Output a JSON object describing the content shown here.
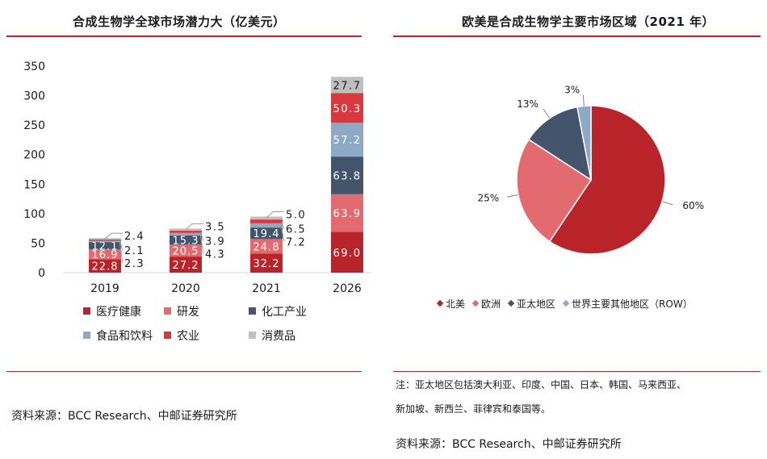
{
  "left": {
    "title": "合成生物学全球市场潜力大（亿美元）",
    "source": "资料来源：BCC Research、中邮证券研究所"
  },
  "right": {
    "title": "欧美是合成生物学主要市场区域（2021 年）",
    "note_line1": "注：亚太地区包括澳大利亚、印度、中国、日本、韩国、马来西亚、",
    "note_line2": "新加坡、新西兰、菲律宾和泰国等。",
    "source": "资料来源：BCC Research、中邮证券研究所"
  },
  "colors": {
    "medical": "#b82429",
    "rnd": "#e36b6f",
    "chemical": "#44546a",
    "food": "#8ea9c4",
    "agri": "#d9393e",
    "consumer": "#bfbfbf",
    "rule": "#b4262b"
  },
  "chart_data": [
    {
      "type": "bar",
      "stacked": true,
      "title": "合成生物学全球市场潜力大（亿美元）",
      "categories": [
        "2019",
        "2020",
        "2021",
        "2026"
      ],
      "ylim": [
        0,
        350
      ],
      "yticks": [
        "0",
        "50",
        "100",
        "150",
        "200",
        "250",
        "300",
        "350"
      ],
      "series": [
        {
          "name": "医疗健康",
          "values": [
            22.8,
            27.2,
            32.2,
            69.0
          ],
          "labels": [
            "22.8",
            "27.2",
            "32.2",
            "69.0"
          ]
        },
        {
          "name": "研发",
          "values": [
            16.9,
            20.5,
            24.8,
            63.9
          ],
          "labels": [
            "16.9",
            "20.5",
            "24.8",
            "63.9"
          ]
        },
        {
          "name": "化工产业",
          "values": [
            12.1,
            15.3,
            19.4,
            63.8
          ],
          "labels": [
            "12.1",
            "15.3",
            "19.4",
            "63.8"
          ]
        },
        {
          "name": "食品和饮料",
          "values": [
            2.3,
            4.3,
            7.2,
            57.2
          ],
          "labels": [
            "2.3",
            "4.3",
            "7.2",
            "57.2"
          ]
        },
        {
          "name": "农业",
          "values": [
            2.1,
            3.9,
            6.5,
            50.3
          ],
          "labels": [
            "2.1",
            "3.9",
            "6.5",
            "50.3"
          ]
        },
        {
          "name": "消费品",
          "values": [
            2.4,
            3.5,
            5.0,
            27.7
          ],
          "labels": [
            "2.4",
            "3.5",
            "5.0",
            "27.7"
          ]
        }
      ]
    },
    {
      "type": "pie",
      "title": "欧美是合成生物学主要市场区域（2021 年）",
      "slices": [
        {
          "name": "北美",
          "value": 60,
          "label": "60%"
        },
        {
          "name": "欧洲",
          "value": 25,
          "label": "25%"
        },
        {
          "name": "亚太地区",
          "value": 13,
          "label": "13%"
        },
        {
          "name": "世界主要其他地区（ROW）",
          "value": 3,
          "label": "3%"
        }
      ]
    }
  ]
}
